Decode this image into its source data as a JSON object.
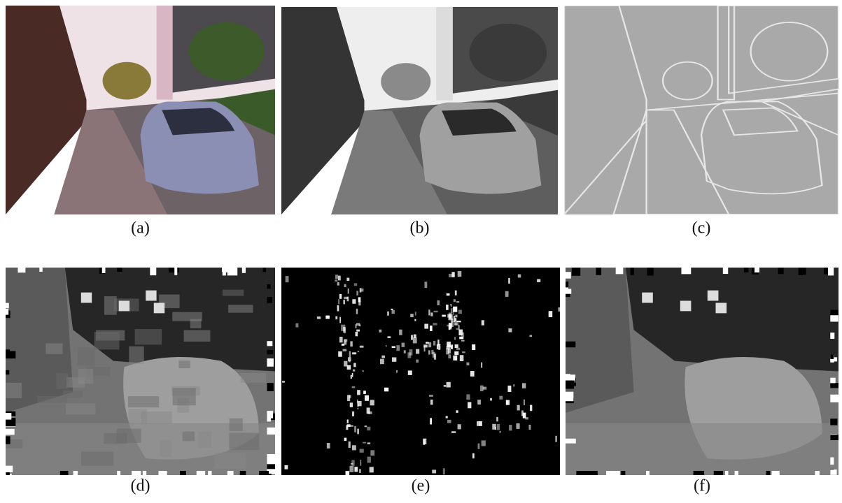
{
  "panels": [
    "(a)",
    "(b)",
    "(c)",
    "(d)",
    "(e)",
    "(f)"
  ]
}
